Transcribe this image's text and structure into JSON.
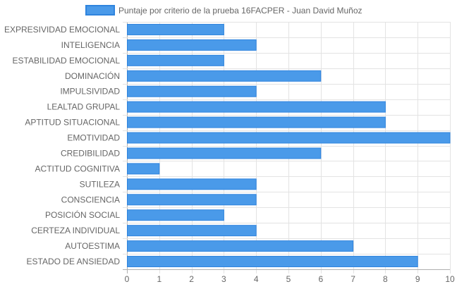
{
  "chart_data": {
    "type": "bar",
    "orientation": "horizontal",
    "legend_position": "top",
    "grid": true,
    "xlim": [
      0,
      10
    ],
    "x_ticks": [
      "0",
      "1",
      "2",
      "3",
      "4",
      "5",
      "6",
      "7",
      "8",
      "9",
      "10"
    ],
    "categories": [
      "EXPRESIVIDAD EMOCIONAL",
      "INTELIGENCIA",
      "ESTABILIDAD EMOCIONAL",
      "DOMINACIÓN",
      "IMPULSIVIDAD",
      "LEALTAD GRUPAL",
      "APTITUD SITUACIONAL",
      "EMOTIVIDAD",
      "CREDIBILIDAD",
      "ACTITUD COGNITIVA",
      "SUTILEZA",
      "CONSCIENCIA",
      "POSICIÓN SOCIAL",
      "CERTEZA INDIVIDUAL",
      "AUTOESTIMA",
      "ESTADO DE ANSIEDAD"
    ],
    "series": [
      {
        "name": "Puntaje por criterio de la prueba 16FACPER - Juan David Muñoz",
        "values": [
          3,
          4,
          3,
          6,
          4,
          8,
          8,
          10,
          6,
          1,
          4,
          4,
          3,
          4,
          7,
          9
        ]
      }
    ],
    "colors": {
      "bar_fill": "#4a9ae9",
      "bar_stroke": "#2f84de",
      "grid": "#e3e3e3",
      "axis": "#b0b0b0",
      "text": "#666666"
    }
  }
}
